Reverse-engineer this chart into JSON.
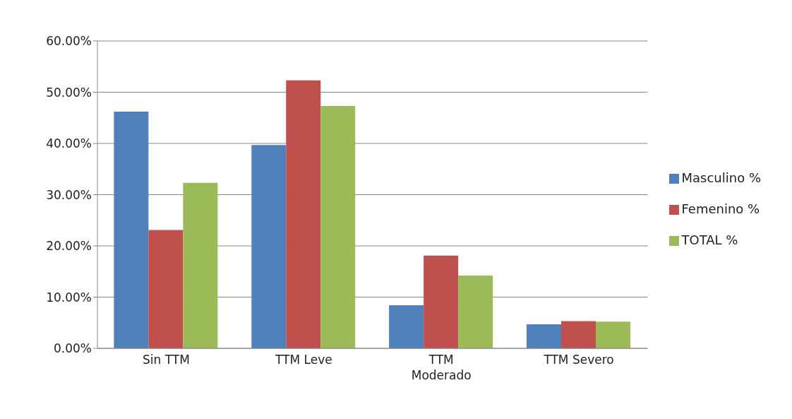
{
  "chart_data": {
    "type": "bar",
    "categories": [
      "Sin TTM",
      "TTM Leve",
      "TTM Moderado",
      "TTM Severo"
    ],
    "series": [
      {
        "name": "Masculino %",
        "color": "#4f81bd",
        "values": [
          46.2,
          39.7,
          8.4,
          4.7
        ]
      },
      {
        "name": "Femenino %",
        "color": "#c0504d",
        "values": [
          23.1,
          52.3,
          18.1,
          5.3
        ]
      },
      {
        "name": "TOTAL %",
        "color": "#9bbb59",
        "values": [
          32.3,
          47.3,
          14.2,
          5.2
        ]
      }
    ],
    "ylim": [
      0,
      60
    ],
    "yticks": [
      {
        "value": 0,
        "label": "0.00%"
      },
      {
        "value": 10,
        "label": "10.00%"
      },
      {
        "value": 20,
        "label": "20.00%"
      },
      {
        "value": 30,
        "label": "30.00%"
      },
      {
        "value": 40,
        "label": "40.00%"
      },
      {
        "value": 50,
        "label": "50.00%"
      },
      {
        "value": 60,
        "label": "60.00%"
      }
    ],
    "grid": "y",
    "legend": "right"
  }
}
